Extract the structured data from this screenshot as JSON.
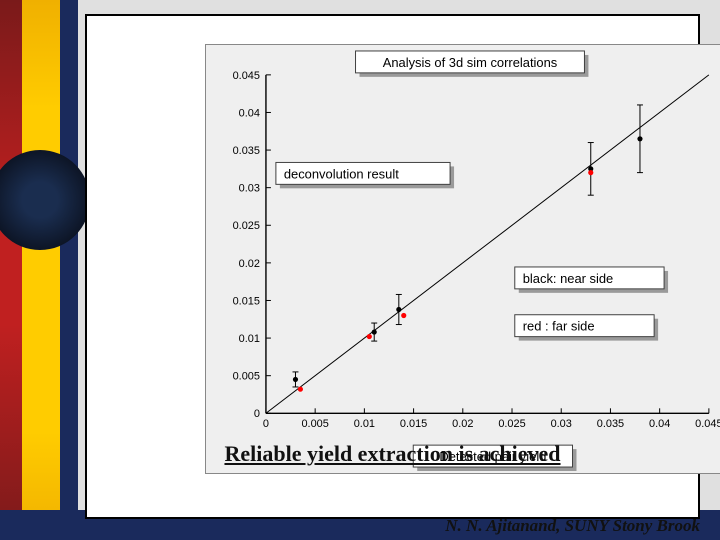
{
  "slide_bg": "#e0e0e0",
  "content_bg": "#ffffff",
  "caption": "Reliable yield extraction is achieved",
  "author": "N. N. Ajitanand, SUNY  Stony Brook",
  "chart": {
    "type": "scatter",
    "title": "Analysis of 3d sim correlations",
    "xlabel": "Detected pair yield",
    "legend_deconv": "deconvolution result",
    "legend_near": "black: near side",
    "legend_far": "red : far side",
    "background_color": "#efefef",
    "plot_bg": "#efefef",
    "axis_color": "#000000",
    "near_color": "#000000",
    "far_color": "#ff0000",
    "line_color": "#000000",
    "title_fontsize": 13,
    "tick_fontsize": 11,
    "xlim": [
      0,
      0.045
    ],
    "ylim": [
      0,
      0.045
    ],
    "xticks": [
      0,
      0.005,
      0.01,
      0.015,
      0.02,
      0.025,
      0.03,
      0.035,
      0.04,
      0.045
    ],
    "yticks": [
      0,
      0.005,
      0.01,
      0.015,
      0.02,
      0.025,
      0.03,
      0.035,
      0.04,
      0.045
    ],
    "xtick_labels": [
      "0",
      "0.005",
      "0.01",
      "0.015",
      "0.02",
      "0.025",
      "0.03",
      "0.035",
      "0.04",
      "0.045"
    ],
    "ytick_labels": [
      "0",
      "0.005",
      "0.01",
      "0.015",
      "0.02",
      "0.025",
      "0.03",
      "0.035",
      "0.04",
      "0.045"
    ],
    "marker_radius": 2.6,
    "errorbar_width": 1,
    "line_points": [
      [
        0,
        0
      ],
      [
        0.045,
        0.045
      ]
    ],
    "near_points": [
      {
        "x": 0.003,
        "y": 0.0045,
        "ey": 0.001
      },
      {
        "x": 0.011,
        "y": 0.0108,
        "ey": 0.0012
      },
      {
        "x": 0.0135,
        "y": 0.0138,
        "ey": 0.002
      },
      {
        "x": 0.033,
        "y": 0.0325,
        "ey": 0.0035
      },
      {
        "x": 0.038,
        "y": 0.0365,
        "ey": 0.0045
      }
    ],
    "far_points": [
      {
        "x": 0.0035,
        "y": 0.0032,
        "ey": 0.0
      },
      {
        "x": 0.0105,
        "y": 0.0102,
        "ey": 0.0
      },
      {
        "x": 0.014,
        "y": 0.013,
        "ey": 0.0
      },
      {
        "x": 0.033,
        "y": 0.032,
        "ey": 0.0
      }
    ]
  }
}
